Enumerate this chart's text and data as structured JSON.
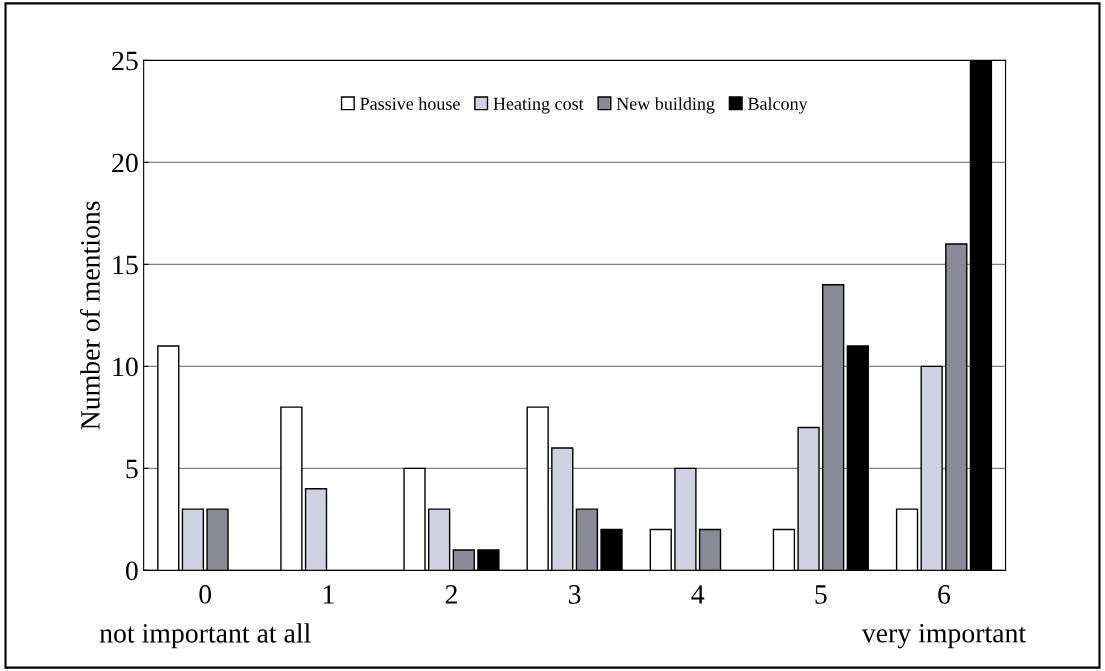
{
  "chart_data": {
    "type": "bar",
    "ylabel": "Number of mentions",
    "categories": [
      "0",
      "1",
      "2",
      "3",
      "4",
      "5",
      "6"
    ],
    "series": [
      {
        "name": "Passive house",
        "color": "#ffffff",
        "values": [
          11,
          8,
          5,
          8,
          2,
          2,
          3
        ]
      },
      {
        "name": "Heating cost",
        "color": "#cfd0e0",
        "values": [
          3,
          4,
          3,
          6,
          5,
          7,
          10
        ]
      },
      {
        "name": "New building",
        "color": "#8a8a96",
        "values": [
          3,
          0,
          1,
          3,
          2,
          14,
          16
        ]
      },
      {
        "name": "Balcony",
        "color": "#000000",
        "values": [
          0,
          0,
          1,
          2,
          0,
          11,
          25
        ]
      }
    ],
    "ylim": [
      0,
      25
    ],
    "yticks": [
      0,
      5,
      10,
      15,
      20,
      25
    ],
    "grid": "y",
    "legend": "top",
    "annotations": [
      "not important at all",
      "very important"
    ]
  }
}
